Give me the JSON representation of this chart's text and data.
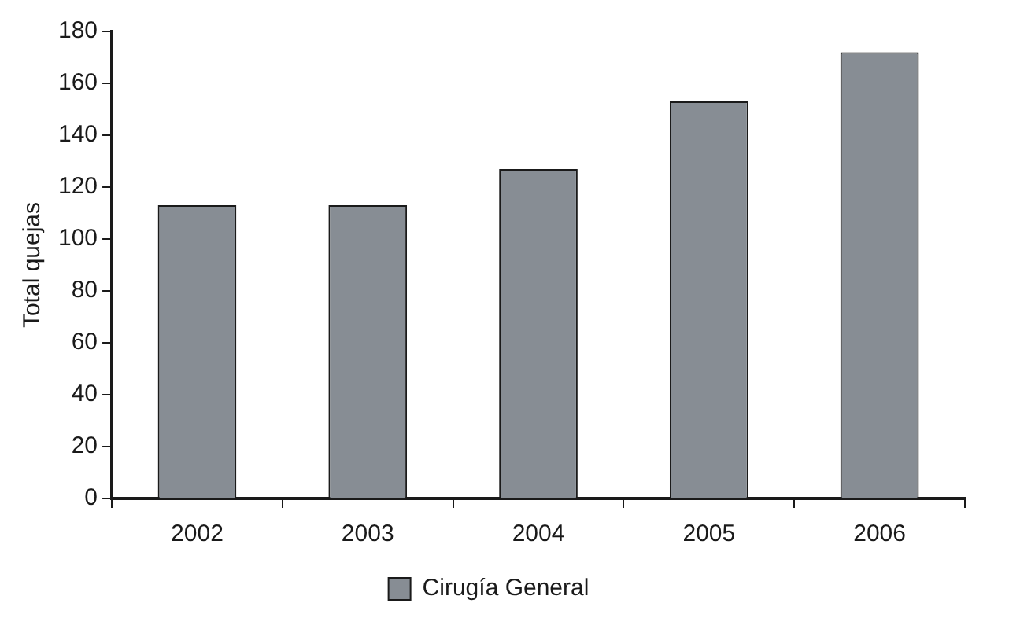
{
  "chart_data": {
    "type": "bar",
    "ylabel": "Total quejas",
    "categories": [
      "2002",
      "2003",
      "2004",
      "2005",
      "2006"
    ],
    "series": [
      {
        "name": "Cirugía General",
        "color": "#878d94",
        "values": [
          113,
          113,
          127,
          153,
          172
        ]
      }
    ],
    "ylim": [
      0,
      180
    ],
    "yticks": [
      0,
      20,
      40,
      60,
      80,
      100,
      120,
      140,
      160,
      180
    ],
    "grid": false,
    "legend": "bottom"
  }
}
